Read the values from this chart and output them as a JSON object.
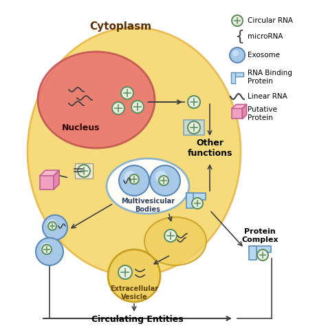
{
  "title": "",
  "bg_color": "#ffffff",
  "cytoplasm_color": "#f5d76e",
  "cytoplasm_edge": "#e8b84b",
  "nucleus_color": "#e87070",
  "nucleus_edge": "#c05050",
  "mvb_color": "#d0e8f0",
  "mvb_edge": "#8ab0c8",
  "exosome_fill": "#a8c8e8",
  "exosome_edge": "#5a88b8",
  "ext_vesicle_color": "#f0d060",
  "ext_vesicle_edge": "#c8a020",
  "rna_binding_color": "#b8d8f0",
  "rna_binding_edge": "#6090b8",
  "putative_color": "#f0a0c0",
  "putative_edge": "#c06090",
  "circ_rna_edge": "#609060",
  "circ_rna_inner": "#e8f0e0",
  "arrow_color": "#404040",
  "text_color": "#000000",
  "bold_labels": [
    "Cytoplasm",
    "Nucleus",
    "Multivesicular\nBodies",
    "Other\nfunctions",
    "Protein\nComplex",
    "Extracellular\nVesicle",
    "Circulating Entities"
  ],
  "legend_items": [
    "Circular RNA",
    "microRNA",
    "Exosome",
    "RNA Binding\nProtein",
    "Linear RNA",
    "Putative\nProtein"
  ]
}
